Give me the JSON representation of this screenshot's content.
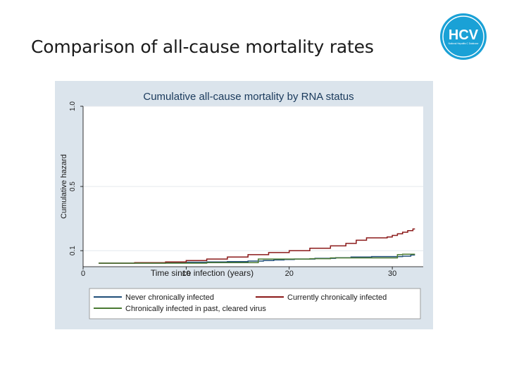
{
  "slide": {
    "title": "Comparison of all-cause mortality rates",
    "logo_text": "HCV",
    "logo_subtext": "National Hepatitis C Database"
  },
  "colors": {
    "figure_background": "#dbe4ec",
    "plot_background": "#ffffff",
    "logo_blue": "#1aa1d6",
    "title_text": "#1a3a5c",
    "series_never": "#1f4e79",
    "series_current": "#8b1a1a",
    "series_past": "#4a7a32"
  },
  "chart_data": {
    "type": "line",
    "step": true,
    "title": "Cumulative all-cause mortality by RNA status",
    "xlabel": "Time since infection (years)",
    "ylabel": "Cumulative hazard",
    "xlim": [
      0,
      33
    ],
    "ylim": [
      0,
      1.0
    ],
    "x_ticks": [
      0,
      10,
      20,
      30
    ],
    "y_ticks": [
      0.1,
      0.5,
      1.0
    ],
    "x_tick_labels": [
      "0",
      "10",
      "20",
      "30"
    ],
    "y_tick_labels": [
      "0.1",
      "0.5",
      "1.0"
    ],
    "grid": "horizontal",
    "legend_position": "bottom",
    "series": [
      {
        "name": "Never chronically infected",
        "color": "#1f4e79",
        "x": [
          1.5,
          5,
          8,
          10,
          12,
          14,
          16,
          17.5,
          18.5,
          19.5,
          20.5,
          22.5,
          24.5,
          26,
          28,
          30,
          31,
          31.8,
          32.2
        ],
        "y": [
          0.022,
          0.022,
          0.025,
          0.028,
          0.03,
          0.032,
          0.035,
          0.038,
          0.042,
          0.045,
          0.048,
          0.052,
          0.056,
          0.06,
          0.063,
          0.063,
          0.066,
          0.073,
          0.073
        ]
      },
      {
        "name": "Currently chronically infected",
        "color": "#8b1a1a",
        "x": [
          1.5,
          5,
          8,
          10,
          12,
          14,
          16,
          18,
          20,
          22,
          24,
          25.5,
          26.5,
          27.5,
          28.5,
          29.5,
          30,
          30.5,
          31,
          31.5,
          32,
          32.2
        ],
        "y": [
          0.022,
          0.025,
          0.03,
          0.038,
          0.048,
          0.06,
          0.075,
          0.088,
          0.1,
          0.115,
          0.13,
          0.145,
          0.165,
          0.18,
          0.18,
          0.185,
          0.195,
          0.205,
          0.215,
          0.225,
          0.235,
          0.235
        ]
      },
      {
        "name": "Chronically infected in past, cleared virus",
        "color": "#4a7a32",
        "x": [
          1.5,
          8,
          12,
          16,
          17,
          20,
          22,
          24,
          28,
          30.5,
          31,
          31.8,
          32.2
        ],
        "y": [
          0.022,
          0.022,
          0.025,
          0.025,
          0.048,
          0.048,
          0.05,
          0.055,
          0.055,
          0.075,
          0.078,
          0.078,
          0.078
        ]
      }
    ]
  }
}
